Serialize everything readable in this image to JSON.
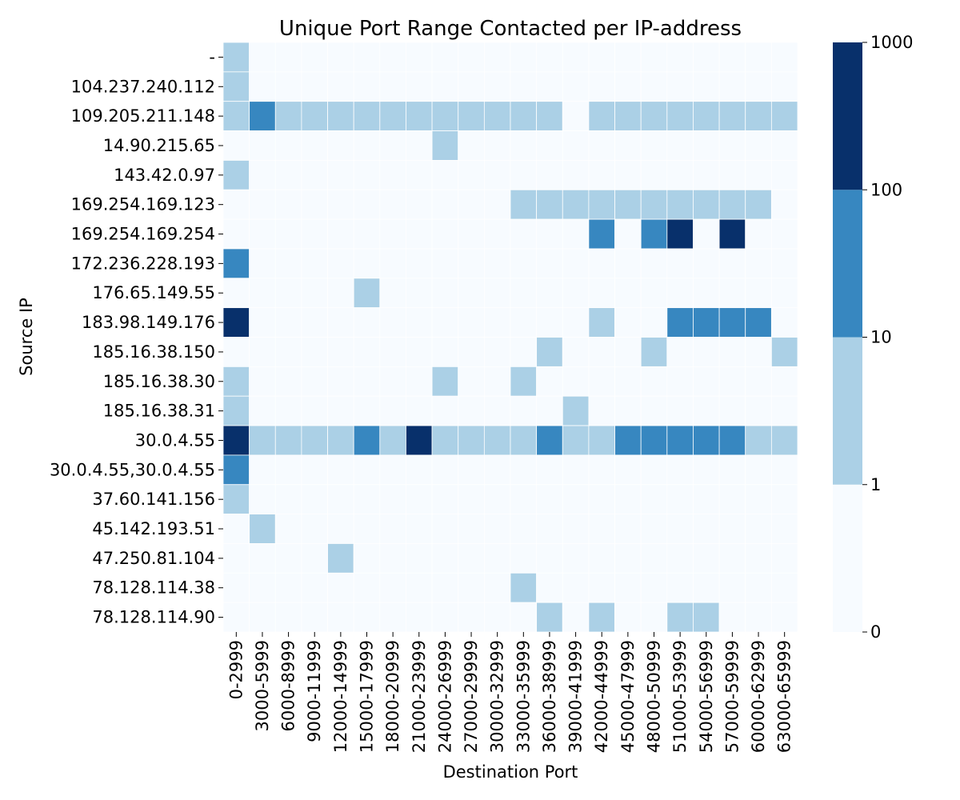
{
  "chart_data": {
    "type": "heatmap",
    "title": "Unique Port Range Contacted per IP-address",
    "xlabel": "Destination Port",
    "ylabel": "Source IP",
    "x_categories": [
      "0-2999",
      "3000-5999",
      "6000-8999",
      "9000-11999",
      "12000-14999",
      "15000-17999",
      "18000-20999",
      "21000-23999",
      "24000-26999",
      "27000-29999",
      "30000-32999",
      "33000-35999",
      "36000-38999",
      "39000-41999",
      "42000-44999",
      "45000-47999",
      "48000-50999",
      "51000-53999",
      "54000-56999",
      "57000-59999",
      "60000-62999",
      "63000-65999"
    ],
    "y_categories": [
      "-",
      "104.237.240.112",
      "109.205.211.148",
      "14.90.215.65",
      "143.42.0.97",
      "169.254.169.123",
      "169.254.169.254",
      "172.236.228.193",
      "176.65.149.55",
      "183.98.149.176",
      "185.16.38.150",
      "185.16.38.30",
      "185.16.38.31",
      "30.0.4.55",
      "30.0.4.55,30.0.4.55",
      "37.60.141.156",
      "45.142.193.51",
      "47.250.81.104",
      "78.128.114.38",
      "78.128.114.90"
    ],
    "bin_levels": [
      [
        1,
        0,
        0,
        0,
        0,
        0,
        0,
        0,
        0,
        0,
        0,
        0,
        0,
        0,
        0,
        0,
        0,
        0,
        0,
        0,
        0,
        0
      ],
      [
        1,
        0,
        0,
        0,
        0,
        0,
        0,
        0,
        0,
        0,
        0,
        0,
        0,
        0,
        0,
        0,
        0,
        0,
        0,
        0,
        0,
        0
      ],
      [
        1,
        2,
        1,
        1,
        1,
        1,
        1,
        1,
        1,
        1,
        1,
        1,
        1,
        0,
        1,
        1,
        1,
        1,
        1,
        1,
        1,
        1
      ],
      [
        0,
        0,
        0,
        0,
        0,
        0,
        0,
        0,
        1,
        0,
        0,
        0,
        0,
        0,
        0,
        0,
        0,
        0,
        0,
        0,
        0,
        0
      ],
      [
        1,
        0,
        0,
        0,
        0,
        0,
        0,
        0,
        0,
        0,
        0,
        0,
        0,
        0,
        0,
        0,
        0,
        0,
        0,
        0,
        0,
        0
      ],
      [
        0,
        0,
        0,
        0,
        0,
        0,
        0,
        0,
        0,
        0,
        0,
        1,
        1,
        1,
        1,
        1,
        1,
        1,
        1,
        1,
        1,
        0
      ],
      [
        0,
        0,
        0,
        0,
        0,
        0,
        0,
        0,
        0,
        0,
        0,
        0,
        0,
        0,
        2,
        0,
        2,
        3,
        0,
        3,
        0,
        0
      ],
      [
        2,
        0,
        0,
        0,
        0,
        0,
        0,
        0,
        0,
        0,
        0,
        0,
        0,
        0,
        0,
        0,
        0,
        0,
        0,
        0,
        0,
        0
      ],
      [
        0,
        0,
        0,
        0,
        0,
        1,
        0,
        0,
        0,
        0,
        0,
        0,
        0,
        0,
        0,
        0,
        0,
        0,
        0,
        0,
        0,
        0
      ],
      [
        3,
        0,
        0,
        0,
        0,
        0,
        0,
        0,
        0,
        0,
        0,
        0,
        0,
        0,
        1,
        0,
        0,
        2,
        2,
        2,
        2,
        0
      ],
      [
        0,
        0,
        0,
        0,
        0,
        0,
        0,
        0,
        0,
        0,
        0,
        0,
        1,
        0,
        0,
        0,
        1,
        0,
        0,
        0,
        0,
        1
      ],
      [
        1,
        0,
        0,
        0,
        0,
        0,
        0,
        0,
        1,
        0,
        0,
        1,
        0,
        0,
        0,
        0,
        0,
        0,
        0,
        0,
        0,
        0
      ],
      [
        1,
        0,
        0,
        0,
        0,
        0,
        0,
        0,
        0,
        0,
        0,
        0,
        0,
        1,
        0,
        0,
        0,
        0,
        0,
        0,
        0,
        0
      ],
      [
        3,
        1,
        1,
        1,
        1,
        2,
        1,
        3,
        1,
        1,
        1,
        1,
        2,
        1,
        1,
        2,
        2,
        2,
        2,
        2,
        1,
        1
      ],
      [
        2,
        0,
        0,
        0,
        0,
        0,
        0,
        0,
        0,
        0,
        0,
        0,
        0,
        0,
        0,
        0,
        0,
        0,
        0,
        0,
        0,
        0
      ],
      [
        1,
        0,
        0,
        0,
        0,
        0,
        0,
        0,
        0,
        0,
        0,
        0,
        0,
        0,
        0,
        0,
        0,
        0,
        0,
        0,
        0,
        0
      ],
      [
        0,
        1,
        0,
        0,
        0,
        0,
        0,
        0,
        0,
        0,
        0,
        0,
        0,
        0,
        0,
        0,
        0,
        0,
        0,
        0,
        0,
        0
      ],
      [
        0,
        0,
        0,
        0,
        1,
        0,
        0,
        0,
        0,
        0,
        0,
        0,
        0,
        0,
        0,
        0,
        0,
        0,
        0,
        0,
        0,
        0
      ],
      [
        0,
        0,
        0,
        0,
        0,
        0,
        0,
        0,
        0,
        0,
        0,
        1,
        0,
        0,
        0,
        0,
        0,
        0,
        0,
        0,
        0,
        0
      ],
      [
        0,
        0,
        0,
        0,
        0,
        0,
        0,
        0,
        0,
        0,
        0,
        0,
        1,
        0,
        1,
        0,
        0,
        1,
        1,
        0,
        0,
        0
      ]
    ],
    "colorbar": {
      "scale": "log",
      "boundaries": [
        0,
        1,
        10,
        100,
        1000
      ],
      "tick_labels": [
        "0",
        "1",
        "10",
        "100",
        "1000"
      ],
      "colors": [
        "#f7fbff",
        "#abd0e6",
        "#3787c0",
        "#08306b"
      ]
    },
    "grid_color": "#ffffff",
    "legend": "right"
  }
}
